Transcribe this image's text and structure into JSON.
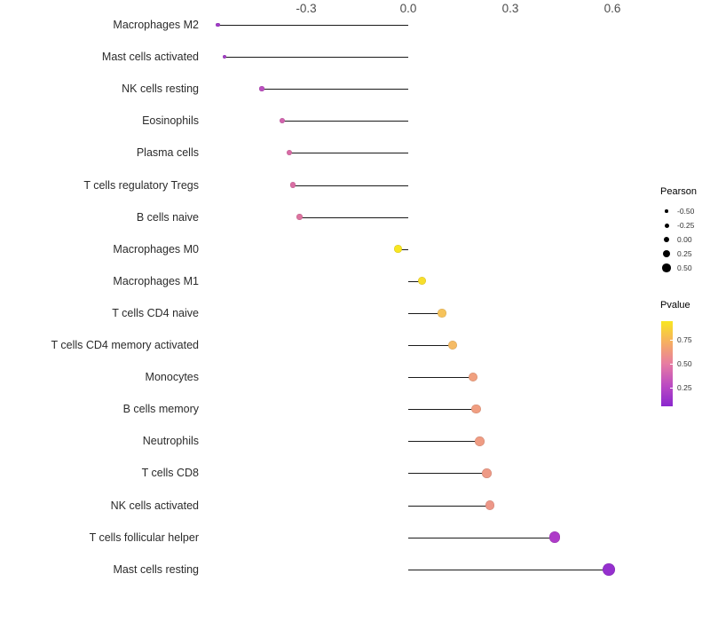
{
  "chart_data": {
    "type": "scatter",
    "subtype": "lollipop",
    "title": "",
    "xlabel": "",
    "ylabel": "",
    "grid": false,
    "xlim": [
      -0.62,
      0.68
    ],
    "x_ticks": [
      -0.3,
      0.0,
      0.3,
      0.6
    ],
    "x_tick_labels": [
      "-0.3",
      "0.0",
      "0.3",
      "0.6"
    ],
    "categories": [
      "Macrophages M2",
      "Mast cells activated",
      "NK cells resting",
      "Eosinophils",
      "Plasma cells",
      "T cells regulatory Tregs",
      "B cells naive",
      "Macrophages M0",
      "Macrophages M1",
      "T cells CD4 naive",
      "T cells CD4 memory activated",
      "Monocytes",
      "B cells memory",
      "Neutrophils",
      "T cells CD8",
      "NK cells activated",
      "T cells follicular helper",
      "Mast cells resting"
    ],
    "points": [
      {
        "label": "Macrophages M2",
        "pearson": -0.56,
        "pvalue": 0.07,
        "color": "#a13bc8"
      },
      {
        "label": "Mast cells activated",
        "pearson": -0.54,
        "pvalue": 0.09,
        "color": "#a43fc6"
      },
      {
        "label": "NK cells resting",
        "pearson": -0.43,
        "pvalue": 0.18,
        "color": "#bc4fc0"
      },
      {
        "label": "Eosinophils",
        "pearson": -0.37,
        "pvalue": 0.32,
        "color": "#d263ae"
      },
      {
        "label": "Plasma cells",
        "pearson": -0.35,
        "pvalue": 0.38,
        "color": "#d96ba6"
      },
      {
        "label": "T cells regulatory Tregs",
        "pearson": -0.34,
        "pvalue": 0.4,
        "color": "#da6ea4"
      },
      {
        "label": "B cells naive",
        "pearson": -0.32,
        "pvalue": 0.44,
        "color": "#dd74a0"
      },
      {
        "label": "Macrophages M0",
        "pearson": -0.03,
        "pvalue": 0.92,
        "color": "#f8e621"
      },
      {
        "label": "Macrophages M1",
        "pearson": 0.04,
        "pvalue": 0.88,
        "color": "#f7de2c"
      },
      {
        "label": "T cells CD4 naive",
        "pearson": 0.1,
        "pvalue": 0.72,
        "color": "#f6c35b"
      },
      {
        "label": "T cells CD4 memory activated",
        "pearson": 0.13,
        "pvalue": 0.68,
        "color": "#f5bb65"
      },
      {
        "label": "Monocytes",
        "pearson": 0.19,
        "pvalue": 0.55,
        "color": "#f0a07f"
      },
      {
        "label": "B cells memory",
        "pearson": 0.2,
        "pvalue": 0.53,
        "color": "#f09e81"
      },
      {
        "label": "Neutrophils",
        "pearson": 0.21,
        "pvalue": 0.52,
        "color": "#ef9c83"
      },
      {
        "label": "T cells CD8",
        "pearson": 0.23,
        "pvalue": 0.5,
        "color": "#ee9a86"
      },
      {
        "label": "NK cells activated",
        "pearson": 0.24,
        "pvalue": 0.48,
        "color": "#ed9788"
      },
      {
        "label": "T cells follicular helper",
        "pearson": 0.43,
        "pvalue": 0.12,
        "color": "#ae3bc8"
      },
      {
        "label": "Mast cells resting",
        "pearson": 0.59,
        "pvalue": 0.05,
        "color": "#9530ce"
      }
    ],
    "legend": {
      "size": {
        "title": "Pearson",
        "entries": [
          "-0.50",
          "-0.25",
          "0.00",
          "0.25",
          "0.50"
        ]
      },
      "color": {
        "title": "Pvalue",
        "ticks": [
          "0.75",
          "0.50",
          "0.25"
        ],
        "gradient_stops": [
          "#f8e621",
          "#f6ae62",
          "#e77ca2",
          "#bc4cc2",
          "#8b27ce"
        ]
      }
    }
  }
}
